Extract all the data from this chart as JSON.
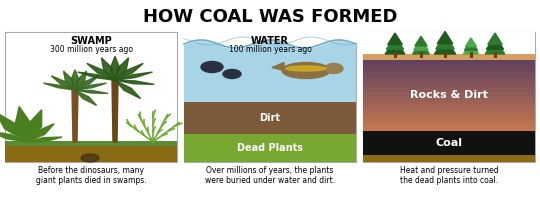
{
  "title": "HOW COAL WAS FORMED",
  "title_fontsize": 13,
  "panel1": {
    "header": "SWAMP",
    "subheader": "300 million years ago",
    "caption": "Before the dinosaurs, many\ngiant plants died in swamps.",
    "ground_color": "#8B6A14",
    "grass_color": "#5a8c35"
  },
  "panel2": {
    "header": "WATER",
    "subheader": "100 million years ago",
    "caption": "Over millions of years, the plants\nwere buried under water and dirt.",
    "water_color": "#a8d4e8",
    "wave_color": "#c8e4f0",
    "dirt_color": "#7B5B3A",
    "dead_plants_color": "#78a832",
    "dirt_label": "Dirt",
    "dead_plants_label": "Dead Plants"
  },
  "panel3": {
    "caption": "Heat and pressure turned\nthe dead plants into coal.",
    "rocks_dirt_top": "#c49060",
    "rocks_dirt_bot": "#7a5070",
    "coal_color": "#111111",
    "bottom_dirt_color": "#8B6A14",
    "rocks_dirt_label": "Rocks & Dirt",
    "coal_label": "Coal",
    "tree_dark": "#1e5a1e",
    "tree_mid": "#2d7a2d",
    "tree_light": "#4aaa4a",
    "ground_strip": "#d4a060"
  },
  "border_color": "#aaaaaa",
  "bg_color": "#ffffff",
  "text_color": "#000000"
}
